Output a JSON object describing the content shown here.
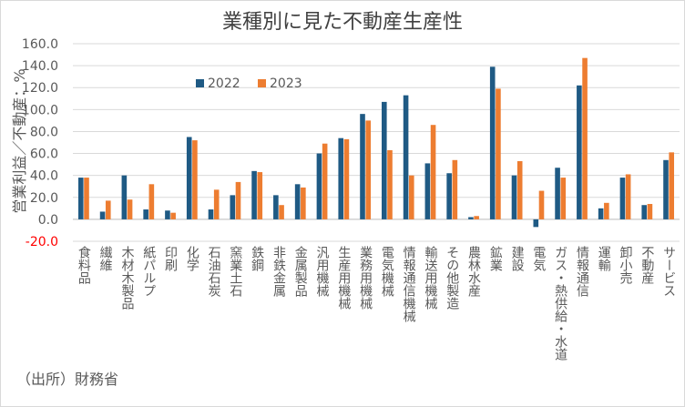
{
  "title": "業種別に見た不動産生産性",
  "source": "（出所）財務省",
  "colors": {
    "series2022": "#1f5a84",
    "series2023": "#ed7d31",
    "negative_tick": "#ff0000",
    "grid": "#d9d9d9",
    "text": "#595959"
  },
  "chart_data": {
    "type": "bar",
    "title": "業種別に見た不動産生産性",
    "ylabel": "営業利益／不動産：%",
    "xlabel": "",
    "ylim": [
      -20,
      160
    ],
    "yticks": [
      "-20.0",
      "0.0",
      "20.0",
      "40.0",
      "60.0",
      "80.0",
      "100.0",
      "120.0",
      "140.0",
      "160.0"
    ],
    "ytick_values": [
      -20,
      0,
      20,
      40,
      60,
      80,
      100,
      120,
      140,
      160
    ],
    "grid": true,
    "legend_position": "top-left",
    "categories": [
      "食料品",
      "繊維",
      "木材木製品",
      "紙パルプ",
      "印刷",
      "化学",
      "石油石炭",
      "窯業土石",
      "鉄鋼",
      "非鉄金属",
      "金属製品",
      "汎用機械",
      "生産用機械",
      "業務用機械",
      "電気機械",
      "情報通信機械",
      "輸送用機械",
      "その他製造",
      "農林水産",
      "鉱業",
      "建設",
      "電気",
      "ガス・熱供給・水道",
      "情報通信",
      "運輸",
      "卸小売",
      "不動産",
      "サービス"
    ],
    "series": [
      {
        "name": "2022",
        "values": [
          38,
          7,
          40,
          9,
          8,
          75,
          9,
          22,
          44,
          22,
          32,
          60,
          74,
          96,
          107,
          113,
          51,
          42,
          2,
          139,
          40,
          -7,
          47,
          122,
          10,
          38,
          13,
          54
        ]
      },
      {
        "name": "2023",
        "values": [
          38,
          17,
          18,
          32,
          6,
          72,
          27,
          34,
          43,
          13,
          29,
          69,
          73,
          90,
          63,
          40,
          86,
          54,
          3,
          119,
          53,
          26,
          38,
          147,
          15,
          41,
          14,
          61
        ]
      }
    ]
  }
}
